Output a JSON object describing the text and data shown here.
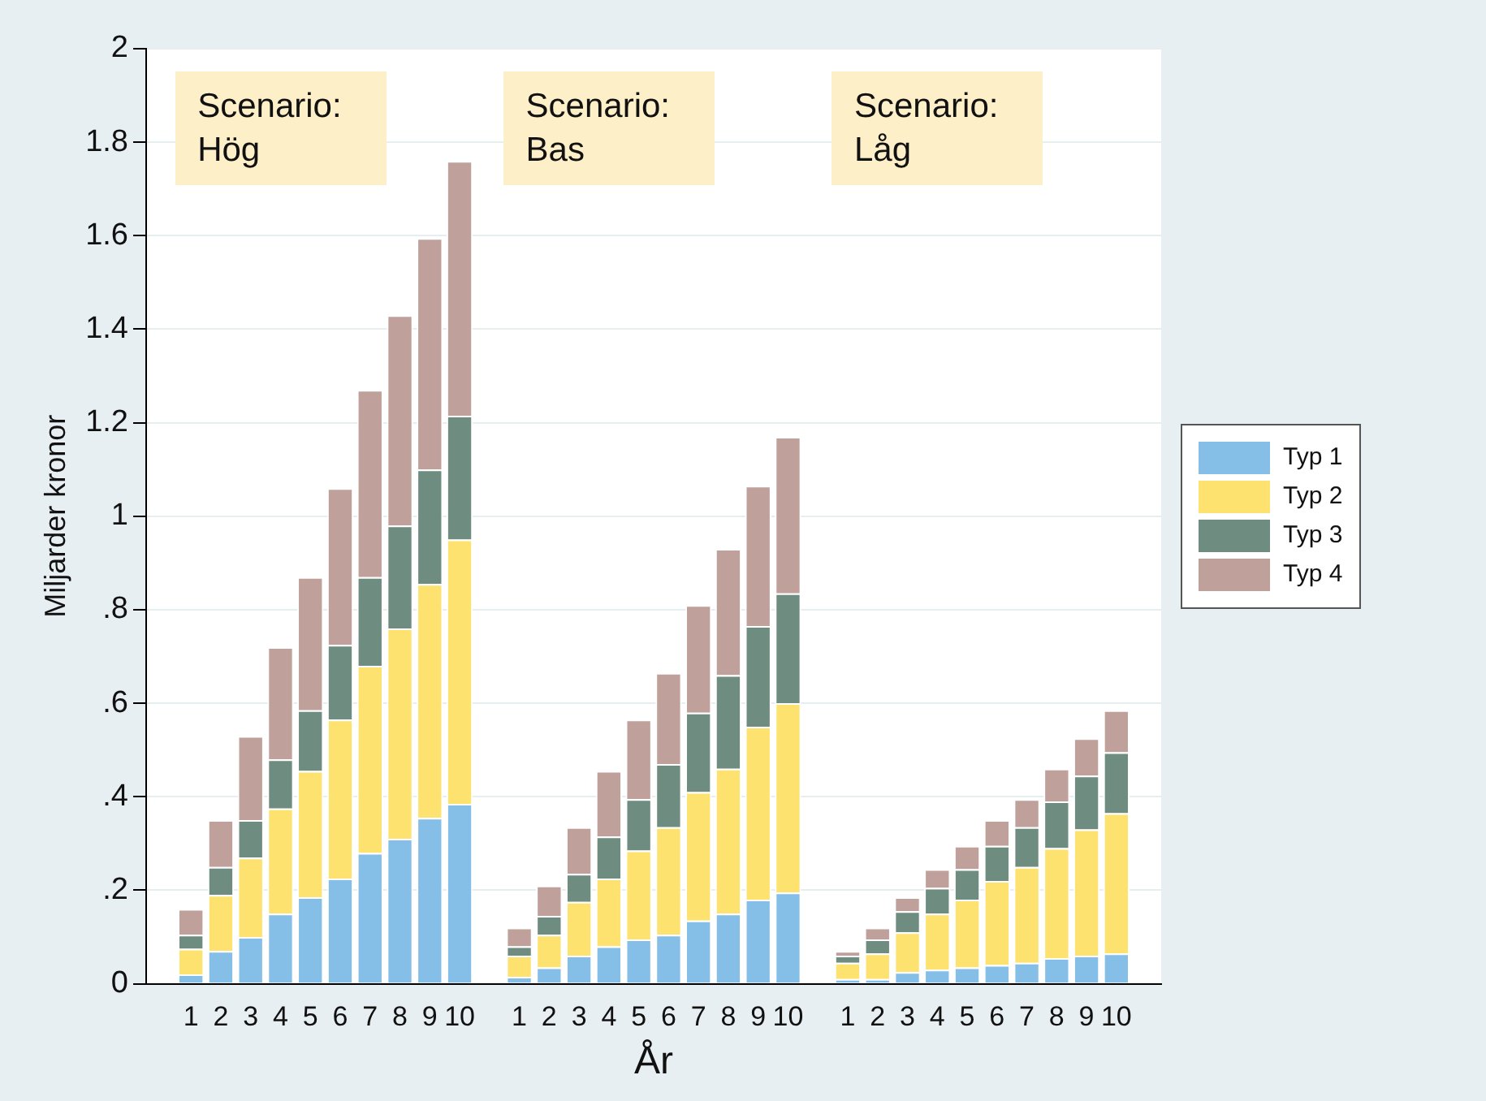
{
  "chart_data": {
    "type": "bar",
    "stacked": true,
    "xlabel": "År",
    "ylabel": "Miljarder kronor",
    "categories": [
      null,
      "1",
      "2",
      "3",
      "4",
      "5",
      "6",
      "7",
      "8",
      "9",
      "10",
      null,
      "1",
      "2",
      "3",
      "4",
      "5",
      "6",
      "7",
      "8",
      "9",
      "10",
      null,
      "1",
      "2",
      "3",
      "4",
      "5",
      "6",
      "7",
      "8",
      "9",
      "10",
      null
    ],
    "series": [
      {
        "name": "Typ 1",
        "color": "#85bfe8",
        "values": [
          null,
          0.02,
          0.07,
          0.1,
          0.15,
          0.185,
          0.225,
          0.28,
          0.31,
          0.355,
          0.385,
          null,
          0.015,
          0.035,
          0.06,
          0.08,
          0.095,
          0.105,
          0.135,
          0.15,
          0.18,
          0.195,
          null,
          0.01,
          0.01,
          0.025,
          0.03,
          0.035,
          0.04,
          0.045,
          0.055,
          0.06,
          0.065,
          null
        ]
      },
      {
        "name": "Typ 2",
        "color": "#fde26f",
        "values": [
          null,
          0.055,
          0.12,
          0.17,
          0.225,
          0.27,
          0.34,
          0.4,
          0.45,
          0.5,
          0.565,
          null,
          0.045,
          0.07,
          0.115,
          0.145,
          0.19,
          0.23,
          0.275,
          0.31,
          0.37,
          0.405,
          null,
          0.035,
          0.055,
          0.085,
          0.12,
          0.145,
          0.18,
          0.205,
          0.235,
          0.27,
          0.3,
          null
        ]
      },
      {
        "name": "Typ 3",
        "color": "#6e8c80",
        "values": [
          null,
          0.03,
          0.06,
          0.08,
          0.105,
          0.13,
          0.16,
          0.19,
          0.22,
          0.245,
          0.265,
          null,
          0.02,
          0.04,
          0.06,
          0.09,
          0.11,
          0.135,
          0.17,
          0.2,
          0.215,
          0.235,
          null,
          0.015,
          0.03,
          0.045,
          0.055,
          0.065,
          0.075,
          0.085,
          0.1,
          0.115,
          0.13,
          null
        ]
      },
      {
        "name": "Typ 4",
        "color": "#bfa09a",
        "values": [
          null,
          0.055,
          0.1,
          0.18,
          0.24,
          0.285,
          0.335,
          0.4,
          0.45,
          0.495,
          0.545,
          null,
          0.04,
          0.065,
          0.1,
          0.14,
          0.17,
          0.195,
          0.23,
          0.27,
          0.3,
          0.335,
          null,
          0.01,
          0.025,
          0.03,
          0.04,
          0.05,
          0.055,
          0.06,
          0.07,
          0.08,
          0.09,
          null
        ]
      }
    ],
    "ylim": [
      0,
      2
    ],
    "yticks": [
      0,
      {
        "value": 0.2,
        "label": ".2"
      },
      {
        "value": 0.4,
        "label": ".4"
      },
      {
        "value": 0.6,
        "label": ".6"
      },
      {
        "value": 0.8,
        "label": ".8"
      },
      1,
      {
        "value": 1.2,
        "label": "1.2"
      },
      {
        "value": 1.4,
        "label": "1.4"
      },
      {
        "value": 1.6,
        "label": "1.6"
      },
      {
        "value": 1.8,
        "label": "1.8"
      },
      2
    ],
    "grid": "y",
    "legend": "right",
    "annotations": [
      "Scenario: Hög",
      "Scenario: Bas",
      "Scenario: Låg"
    ]
  }
}
